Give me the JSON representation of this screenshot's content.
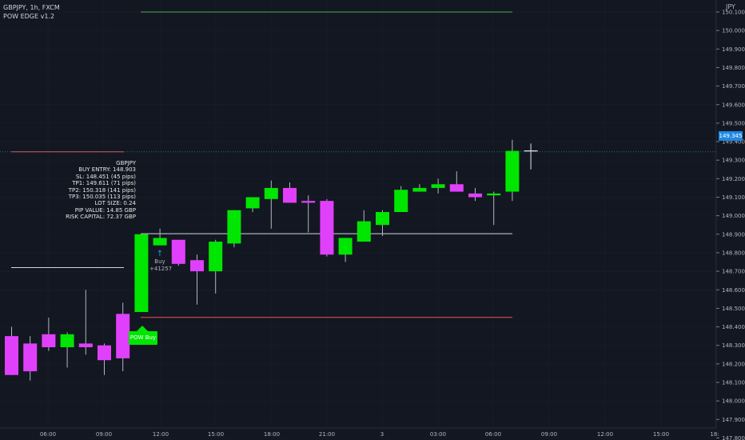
{
  "legend": {
    "symbol_line": "GBPJPY, 1h, FXCM",
    "indicator": "POW EDGE v1.2"
  },
  "axis": {
    "unit": "JPY",
    "price_ticks": [
      "150.100",
      "149.900",
      "149.700",
      "149.500",
      "149.300",
      "149.100",
      "148.900",
      "148.700",
      "148.500",
      "148.300",
      "148.100",
      "147.900",
      "147.800",
      "148.000",
      "148.200",
      "148.400",
      "148.600",
      "148.800",
      "149.000",
      "149.200",
      "149.400",
      "149.600",
      "149.800",
      "150.000"
    ],
    "current_price": "149.345",
    "time_ticks": [
      "06:00",
      "09:00",
      "12:00",
      "15:00",
      "18:00",
      "21:00",
      "3",
      "03:00",
      "06:00",
      "09:00",
      "12:00",
      "15:00",
      "18:"
    ]
  },
  "info_box": {
    "lines": [
      "GBPJPY",
      "BUY ENTRY: 148.903",
      "SL: 148.451 (45 pips)",
      "TP1: 149.611 (71 pips)",
      "TP2: 150.318 (141 pips)",
      "TP3: 150.035 (113 pips)",
      "LOT SIZE: 0.24",
      "PIP VALUE: 14.85 GBP",
      "RISK CAPITAL: 72.37 GBP"
    ]
  },
  "buy_marker": {
    "arrow": "↑",
    "label": "Buy",
    "qty": "+41257"
  },
  "pow_signal": {
    "label": "POW Buy"
  },
  "colors": {
    "bg": "#131722",
    "bull": "#00e600",
    "bear": "#e040fb",
    "grid": "#2a2e39",
    "entry": "#d1d4dc",
    "stop": "#ef5350",
    "target": "#26a69a",
    "price_tag": "#1e88e5"
  },
  "chart_data": {
    "type": "candlestick",
    "symbol": "GBPJPY",
    "timeframe": "1h",
    "ylim": [
      147.75,
      150.15
    ],
    "candles": [
      {
        "o": 148.35,
        "h": 148.4,
        "l": 148.14,
        "c": 148.14
      },
      {
        "o": 148.31,
        "h": 148.35,
        "l": 148.11,
        "c": 148.16
      },
      {
        "o": 148.36,
        "h": 148.45,
        "l": 148.27,
        "c": 148.29
      },
      {
        "o": 148.29,
        "h": 148.37,
        "l": 148.18,
        "c": 148.36
      },
      {
        "o": 148.31,
        "h": 148.6,
        "l": 148.25,
        "c": 148.29
      },
      {
        "o": 148.3,
        "h": 148.31,
        "l": 148.14,
        "c": 148.22
      },
      {
        "o": 148.47,
        "h": 148.53,
        "l": 148.16,
        "c": 148.23
      },
      {
        "o": 148.48,
        "h": 148.9,
        "l": 148.48,
        "c": 148.9
      },
      {
        "o": 148.84,
        "h": 148.93,
        "l": 148.84,
        "c": 148.88
      },
      {
        "o": 148.87,
        "h": 148.87,
        "l": 148.73,
        "c": 148.74
      },
      {
        "o": 148.76,
        "h": 148.79,
        "l": 148.52,
        "c": 148.7
      },
      {
        "o": 148.7,
        "h": 148.87,
        "l": 148.58,
        "c": 148.86
      },
      {
        "o": 148.85,
        "h": 149.03,
        "l": 148.83,
        "c": 149.03
      },
      {
        "o": 149.04,
        "h": 149.1,
        "l": 149.02,
        "c": 149.1
      },
      {
        "o": 149.09,
        "h": 149.19,
        "l": 148.93,
        "c": 149.15
      },
      {
        "o": 149.15,
        "h": 149.18,
        "l": 149.09,
        "c": 149.07
      },
      {
        "o": 149.08,
        "h": 149.11,
        "l": 148.91,
        "c": 149.07
      },
      {
        "o": 149.08,
        "h": 149.09,
        "l": 148.78,
        "c": 148.79
      },
      {
        "o": 148.79,
        "h": 148.88,
        "l": 148.75,
        "c": 148.88
      },
      {
        "o": 148.86,
        "h": 149.03,
        "l": 148.86,
        "c": 148.97
      },
      {
        "o": 148.95,
        "h": 149.03,
        "l": 148.89,
        "c": 149.02
      },
      {
        "o": 149.02,
        "h": 149.16,
        "l": 149.02,
        "c": 149.14
      },
      {
        "o": 149.13,
        "h": 149.17,
        "l": 149.13,
        "c": 149.15
      },
      {
        "o": 149.15,
        "h": 149.2,
        "l": 149.12,
        "c": 149.17
      },
      {
        "o": 149.17,
        "h": 149.24,
        "l": 149.13,
        "c": 149.13
      },
      {
        "o": 149.12,
        "h": 149.15,
        "l": 149.08,
        "c": 149.1
      },
      {
        "o": 149.11,
        "h": 149.13,
        "l": 148.95,
        "c": 149.12
      },
      {
        "o": 149.13,
        "h": 149.41,
        "l": 149.08,
        "c": 149.35
      },
      {
        "o": 149.35,
        "h": 149.39,
        "l": 149.25,
        "c": 149.34
      }
    ],
    "levels": {
      "entry": 148.903,
      "stop_loss": 148.451,
      "target_top": 150.1,
      "prior_stop": 149.345,
      "prior_entry": 148.72
    }
  }
}
